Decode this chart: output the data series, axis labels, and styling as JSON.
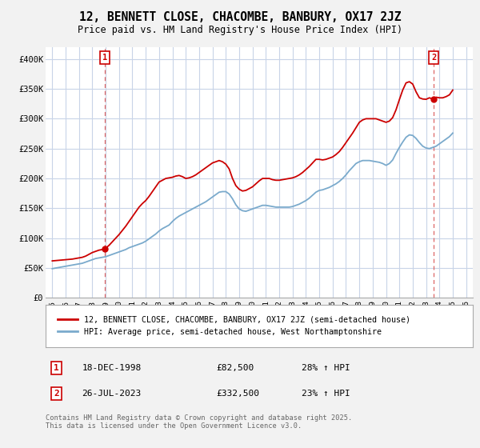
{
  "title": "12, BENNETT CLOSE, CHACOMBE, BANBURY, OX17 2JZ",
  "subtitle": "Price paid vs. HM Land Registry's House Price Index (HPI)",
  "title_fontsize": 10.5,
  "subtitle_fontsize": 8.5,
  "background_color": "#f2f2f2",
  "plot_bg_color": "#ffffff",
  "grid_color": "#c8d4e8",
  "red_line_color": "#cc0000",
  "blue_line_color": "#7aaacc",
  "annotation_box_color": "#cc0000",
  "vline_color": "#dd6666",
  "marker1_x": 1998.96,
  "marker1_y": 82500,
  "marker2_x": 2023.57,
  "marker2_y": 332500,
  "legend_label_red": "12, BENNETT CLOSE, CHACOMBE, BANBURY, OX17 2JZ (semi-detached house)",
  "legend_label_blue": "HPI: Average price, semi-detached house, West Northamptonshire",
  "ann1_date": "18-DEC-1998",
  "ann1_price": "£82,500",
  "ann1_hpi": "28% ↑ HPI",
  "ann2_date": "26-JUL-2023",
  "ann2_price": "£332,500",
  "ann2_hpi": "23% ↑ HPI",
  "footer": "Contains HM Land Registry data © Crown copyright and database right 2025.\nThis data is licensed under the Open Government Licence v3.0.",
  "ylim": [
    0,
    420000
  ],
  "xlim": [
    1994.5,
    2026.5
  ],
  "red_x": [
    1995.0,
    1995.25,
    1995.5,
    1995.75,
    1996.0,
    1996.25,
    1996.5,
    1996.75,
    1997.0,
    1997.25,
    1997.5,
    1997.75,
    1998.0,
    1998.25,
    1998.5,
    1998.75,
    1998.96,
    1999.25,
    1999.5,
    1999.75,
    2000.0,
    2000.25,
    2000.5,
    2000.75,
    2001.0,
    2001.25,
    2001.5,
    2001.75,
    2002.0,
    2002.25,
    2002.5,
    2002.75,
    2003.0,
    2003.25,
    2003.5,
    2003.75,
    2004.0,
    2004.25,
    2004.5,
    2004.75,
    2005.0,
    2005.25,
    2005.5,
    2005.75,
    2006.0,
    2006.25,
    2006.5,
    2006.75,
    2007.0,
    2007.25,
    2007.5,
    2007.75,
    2008.0,
    2008.25,
    2008.5,
    2008.75,
    2009.0,
    2009.25,
    2009.5,
    2009.75,
    2010.0,
    2010.25,
    2010.5,
    2010.75,
    2011.0,
    2011.25,
    2011.5,
    2011.75,
    2012.0,
    2012.25,
    2012.5,
    2012.75,
    2013.0,
    2013.25,
    2013.5,
    2013.75,
    2014.0,
    2014.25,
    2014.5,
    2014.75,
    2015.0,
    2015.25,
    2015.5,
    2015.75,
    2016.0,
    2016.25,
    2016.5,
    2016.75,
    2017.0,
    2017.25,
    2017.5,
    2017.75,
    2018.0,
    2018.25,
    2018.5,
    2018.75,
    2019.0,
    2019.25,
    2019.5,
    2019.75,
    2020.0,
    2020.25,
    2020.5,
    2020.75,
    2021.0,
    2021.25,
    2021.5,
    2021.75,
    2022.0,
    2022.25,
    2022.5,
    2022.75,
    2023.0,
    2023.25,
    2023.57,
    2023.75,
    2024.0,
    2024.25,
    2024.5,
    2024.75,
    2025.0
  ],
  "red_y": [
    62000,
    62500,
    63000,
    63500,
    64000,
    64500,
    65000,
    66000,
    67000,
    68000,
    70000,
    73000,
    76000,
    78000,
    80000,
    81000,
    82500,
    88000,
    94000,
    100000,
    106000,
    113000,
    120000,
    128000,
    136000,
    144000,
    152000,
    158000,
    163000,
    170000,
    178000,
    186000,
    194000,
    197000,
    200000,
    201000,
    202000,
    204000,
    205000,
    203000,
    200000,
    201000,
    203000,
    206000,
    210000,
    214000,
    218000,
    222000,
    226000,
    228000,
    230000,
    228000,
    224000,
    216000,
    200000,
    188000,
    182000,
    179000,
    180000,
    183000,
    186000,
    191000,
    196000,
    200000,
    200000,
    200000,
    198000,
    197000,
    197000,
    198000,
    199000,
    200000,
    201000,
    203000,
    206000,
    210000,
    215000,
    220000,
    226000,
    232000,
    232000,
    231000,
    232000,
    234000,
    236000,
    240000,
    245000,
    252000,
    260000,
    268000,
    276000,
    285000,
    294000,
    298000,
    300000,
    300000,
    300000,
    300000,
    298000,
    296000,
    294000,
    296000,
    302000,
    315000,
    332000,
    348000,
    360000,
    362000,
    358000,
    345000,
    335000,
    333000,
    332500,
    335000,
    332500,
    336000,
    335000,
    335000,
    337000,
    340000,
    348000
  ],
  "blue_x": [
    1995.0,
    1995.25,
    1995.5,
    1995.75,
    1996.0,
    1996.25,
    1996.5,
    1996.75,
    1997.0,
    1997.25,
    1997.5,
    1997.75,
    1998.0,
    1998.25,
    1998.5,
    1998.75,
    1999.0,
    1999.25,
    1999.5,
    1999.75,
    2000.0,
    2000.25,
    2000.5,
    2000.75,
    2001.0,
    2001.25,
    2001.5,
    2001.75,
    2002.0,
    2002.25,
    2002.5,
    2002.75,
    2003.0,
    2003.25,
    2003.5,
    2003.75,
    2004.0,
    2004.25,
    2004.5,
    2004.75,
    2005.0,
    2005.25,
    2005.5,
    2005.75,
    2006.0,
    2006.25,
    2006.5,
    2006.75,
    2007.0,
    2007.25,
    2007.5,
    2007.75,
    2008.0,
    2008.25,
    2008.5,
    2008.75,
    2009.0,
    2009.25,
    2009.5,
    2009.75,
    2010.0,
    2010.25,
    2010.5,
    2010.75,
    2011.0,
    2011.25,
    2011.5,
    2011.75,
    2012.0,
    2012.25,
    2012.5,
    2012.75,
    2013.0,
    2013.25,
    2013.5,
    2013.75,
    2014.0,
    2014.25,
    2014.5,
    2014.75,
    2015.0,
    2015.25,
    2015.5,
    2015.75,
    2016.0,
    2016.25,
    2016.5,
    2016.75,
    2017.0,
    2017.25,
    2017.5,
    2017.75,
    2018.0,
    2018.25,
    2018.5,
    2018.75,
    2019.0,
    2019.25,
    2019.5,
    2019.75,
    2020.0,
    2020.25,
    2020.5,
    2020.75,
    2021.0,
    2021.25,
    2021.5,
    2021.75,
    2022.0,
    2022.25,
    2022.5,
    2022.75,
    2023.0,
    2023.25,
    2023.5,
    2023.75,
    2024.0,
    2024.25,
    2024.5,
    2024.75,
    2025.0
  ],
  "blue_y": [
    49000,
    50000,
    51000,
    52000,
    53000,
    54000,
    55000,
    56000,
    57000,
    58000,
    60000,
    62000,
    64000,
    66000,
    67000,
    68000,
    69000,
    71000,
    73000,
    75000,
    77000,
    79000,
    81000,
    84000,
    86000,
    88000,
    90000,
    92000,
    95000,
    99000,
    103000,
    107000,
    112000,
    116000,
    119000,
    122000,
    128000,
    133000,
    137000,
    140000,
    143000,
    146000,
    149000,
    152000,
    155000,
    158000,
    161000,
    165000,
    169000,
    173000,
    177000,
    178000,
    178000,
    174000,
    166000,
    156000,
    149000,
    146000,
    145000,
    147000,
    149000,
    151000,
    153000,
    155000,
    155000,
    154000,
    153000,
    152000,
    152000,
    152000,
    152000,
    152000,
    153000,
    155000,
    157000,
    160000,
    163000,
    167000,
    172000,
    177000,
    180000,
    181000,
    183000,
    185000,
    188000,
    191000,
    195000,
    200000,
    206000,
    213000,
    219000,
    225000,
    228000,
    230000,
    230000,
    230000,
    229000,
    228000,
    227000,
    225000,
    222000,
    225000,
    231000,
    242000,
    252000,
    261000,
    269000,
    273000,
    272000,
    267000,
    260000,
    254000,
    251000,
    250000,
    252000,
    254000,
    258000,
    262000,
    266000,
    270000,
    276000
  ]
}
